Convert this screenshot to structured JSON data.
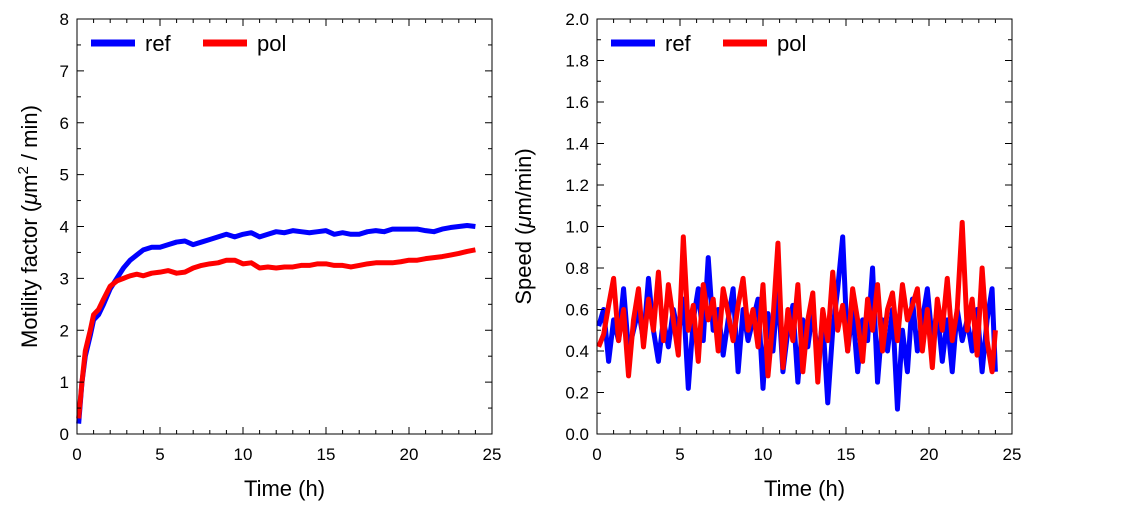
{
  "chart_data": [
    {
      "type": "line",
      "xlabel": "Time (h)",
      "ylabel_parts": {
        "prefix": "Motility factor (",
        "mu": "μ",
        "unit": "m",
        "sup": "2",
        "suffix": " / min)"
      },
      "xlim": [
        0,
        25
      ],
      "ylim": [
        0,
        8
      ],
      "xticks": [
        0,
        5,
        10,
        15,
        20,
        25
      ],
      "yticks": [
        0,
        1,
        2,
        3,
        4,
        5,
        6,
        7,
        8
      ],
      "ytick_labels": [
        "0",
        "1",
        "2",
        "3",
        "4",
        "5",
        "6",
        "7",
        "8"
      ],
      "grid": false,
      "legend_position": "top-left",
      "series": [
        {
          "name": "ref",
          "color": "#0000ff",
          "x": [
            0.1,
            0.3,
            0.5,
            0.8,
            1.0,
            1.3,
            1.6,
            2.0,
            2.4,
            2.8,
            3.2,
            3.6,
            4.0,
            4.5,
            5.0,
            5.5,
            6.0,
            6.5,
            7.0,
            7.5,
            8.0,
            8.5,
            9.0,
            9.5,
            10.0,
            10.5,
            11.0,
            11.5,
            12.0,
            12.5,
            13.0,
            13.5,
            14.0,
            14.5,
            15.0,
            15.5,
            16.0,
            16.5,
            17.0,
            17.5,
            18.0,
            18.5,
            19.0,
            19.5,
            20.0,
            20.5,
            21.0,
            21.5,
            22.0,
            22.5,
            23.0,
            23.5,
            24.0
          ],
          "values": [
            0.2,
            1.0,
            1.5,
            1.9,
            2.2,
            2.3,
            2.5,
            2.8,
            3.0,
            3.2,
            3.35,
            3.45,
            3.55,
            3.6,
            3.6,
            3.65,
            3.7,
            3.72,
            3.65,
            3.7,
            3.75,
            3.8,
            3.85,
            3.8,
            3.85,
            3.88,
            3.8,
            3.85,
            3.9,
            3.88,
            3.92,
            3.9,
            3.88,
            3.9,
            3.92,
            3.85,
            3.88,
            3.85,
            3.85,
            3.9,
            3.92,
            3.9,
            3.95,
            3.95,
            3.95,
            3.95,
            3.92,
            3.9,
            3.95,
            3.98,
            4.0,
            4.02,
            4.0
          ]
        },
        {
          "name": "pol",
          "color": "#ff0000",
          "x": [
            0.1,
            0.3,
            0.5,
            0.8,
            1.0,
            1.3,
            1.6,
            2.0,
            2.4,
            2.8,
            3.2,
            3.6,
            4.0,
            4.5,
            5.0,
            5.5,
            6.0,
            6.5,
            7.0,
            7.5,
            8.0,
            8.5,
            9.0,
            9.5,
            10.0,
            10.5,
            11.0,
            11.5,
            12.0,
            12.5,
            13.0,
            13.5,
            14.0,
            14.5,
            15.0,
            15.5,
            16.0,
            16.5,
            17.0,
            17.5,
            18.0,
            18.5,
            19.0,
            19.5,
            20.0,
            20.5,
            21.0,
            21.5,
            22.0,
            22.5,
            23.0,
            23.5,
            24.0
          ],
          "values": [
            0.3,
            1.0,
            1.6,
            2.0,
            2.3,
            2.4,
            2.6,
            2.85,
            2.95,
            3.0,
            3.05,
            3.08,
            3.05,
            3.1,
            3.12,
            3.15,
            3.1,
            3.12,
            3.2,
            3.25,
            3.28,
            3.3,
            3.35,
            3.35,
            3.28,
            3.3,
            3.2,
            3.22,
            3.2,
            3.22,
            3.22,
            3.25,
            3.25,
            3.28,
            3.28,
            3.25,
            3.25,
            3.22,
            3.25,
            3.28,
            3.3,
            3.3,
            3.3,
            3.32,
            3.35,
            3.35,
            3.38,
            3.4,
            3.42,
            3.45,
            3.48,
            3.52,
            3.55
          ]
        }
      ]
    },
    {
      "type": "line",
      "xlabel": "Time (h)",
      "ylabel_parts": {
        "prefix": "Speed (",
        "mu": "μ",
        "unit": "m/min)",
        "sup": "",
        "suffix": ""
      },
      "xlim": [
        0,
        25
      ],
      "ylim": [
        0,
        2
      ],
      "xticks": [
        0,
        5,
        10,
        15,
        20,
        25
      ],
      "yticks": [
        0,
        0.2,
        0.4,
        0.6,
        0.8,
        1.0,
        1.2,
        1.4,
        1.6,
        1.8,
        2.0
      ],
      "ytick_labels": [
        "0.0",
        "0.2",
        "0.4",
        "0.6",
        "0.8",
        "1.0",
        "1.2",
        "1.4",
        "1.6",
        "1.8",
        "2.0"
      ],
      "grid": false,
      "legend_position": "top-left",
      "series": [
        {
          "name": "ref",
          "color": "#0000ff",
          "x": [
            0.1,
            0.4,
            0.7,
            1.0,
            1.3,
            1.6,
            1.9,
            2.2,
            2.5,
            2.8,
            3.1,
            3.4,
            3.7,
            4.0,
            4.3,
            4.6,
            4.9,
            5.2,
            5.5,
            5.8,
            6.1,
            6.4,
            6.7,
            7.0,
            7.3,
            7.6,
            7.9,
            8.2,
            8.5,
            8.8,
            9.1,
            9.4,
            9.7,
            10.0,
            10.3,
            10.6,
            10.9,
            11.2,
            11.5,
            11.8,
            12.1,
            12.4,
            12.7,
            13.0,
            13.3,
            13.6,
            13.9,
            14.2,
            14.5,
            14.8,
            15.1,
            15.4,
            15.7,
            16.0,
            16.3,
            16.6,
            16.9,
            17.2,
            17.5,
            17.8,
            18.1,
            18.4,
            18.7,
            19.0,
            19.3,
            19.6,
            19.9,
            20.2,
            20.5,
            20.8,
            21.1,
            21.4,
            21.7,
            22.0,
            22.3,
            22.6,
            22.9,
            23.2,
            23.5,
            23.8,
            24.0
          ],
          "values": [
            0.52,
            0.6,
            0.35,
            0.55,
            0.45,
            0.7,
            0.4,
            0.5,
            0.6,
            0.45,
            0.75,
            0.5,
            0.35,
            0.55,
            0.42,
            0.6,
            0.48,
            0.65,
            0.22,
            0.55,
            0.7,
            0.45,
            0.85,
            0.5,
            0.6,
            0.38,
            0.55,
            0.7,
            0.3,
            0.6,
            0.45,
            0.55,
            0.65,
            0.22,
            0.58,
            0.4,
            0.7,
            0.3,
            0.5,
            0.62,
            0.25,
            0.55,
            0.42,
            0.6,
            0.35,
            0.55,
            0.15,
            0.5,
            0.7,
            0.95,
            0.4,
            0.6,
            0.3,
            0.55,
            0.45,
            0.8,
            0.25,
            0.55,
            0.4,
            0.6,
            0.12,
            0.5,
            0.3,
            0.65,
            0.4,
            0.55,
            0.7,
            0.45,
            0.6,
            0.35,
            0.55,
            0.3,
            0.6,
            0.45,
            0.55,
            0.4,
            0.6,
            0.3,
            0.55,
            0.7,
            0.3
          ]
        },
        {
          "name": "pol",
          "color": "#ff0000",
          "x": [
            0.1,
            0.4,
            0.7,
            1.0,
            1.3,
            1.6,
            1.9,
            2.2,
            2.5,
            2.8,
            3.1,
            3.4,
            3.7,
            4.0,
            4.3,
            4.6,
            4.9,
            5.2,
            5.5,
            5.8,
            6.1,
            6.4,
            6.7,
            7.0,
            7.3,
            7.6,
            7.9,
            8.2,
            8.5,
            8.8,
            9.1,
            9.4,
            9.7,
            10.0,
            10.3,
            10.6,
            10.9,
            11.2,
            11.5,
            11.8,
            12.1,
            12.4,
            12.7,
            13.0,
            13.3,
            13.6,
            13.9,
            14.2,
            14.5,
            14.8,
            15.1,
            15.4,
            15.7,
            16.0,
            16.3,
            16.6,
            16.9,
            17.2,
            17.5,
            17.8,
            18.1,
            18.4,
            18.7,
            19.0,
            19.3,
            19.6,
            19.9,
            20.2,
            20.5,
            20.8,
            21.1,
            21.4,
            21.7,
            22.0,
            22.3,
            22.6,
            22.9,
            23.2,
            23.5,
            23.8,
            24.0
          ],
          "values": [
            0.42,
            0.48,
            0.62,
            0.75,
            0.45,
            0.6,
            0.28,
            0.55,
            0.7,
            0.42,
            0.65,
            0.5,
            0.78,
            0.45,
            0.72,
            0.55,
            0.38,
            0.95,
            0.5,
            0.62,
            0.35,
            0.72,
            0.55,
            0.65,
            0.4,
            0.7,
            0.58,
            0.45,
            0.62,
            0.75,
            0.5,
            0.6,
            0.42,
            0.72,
            0.28,
            0.55,
            0.92,
            0.32,
            0.6,
            0.45,
            0.72,
            0.3,
            0.55,
            0.68,
            0.25,
            0.6,
            0.45,
            0.78,
            0.5,
            0.62,
            0.4,
            0.7,
            0.55,
            0.35,
            0.65,
            0.5,
            0.72,
            0.4,
            0.6,
            0.68,
            0.45,
            0.72,
            0.55,
            0.62,
            0.7,
            0.4,
            0.6,
            0.32,
            0.65,
            0.5,
            0.75,
            0.45,
            0.6,
            1.02,
            0.5,
            0.65,
            0.38,
            0.8,
            0.45,
            0.3,
            0.5
          ]
        }
      ]
    }
  ]
}
